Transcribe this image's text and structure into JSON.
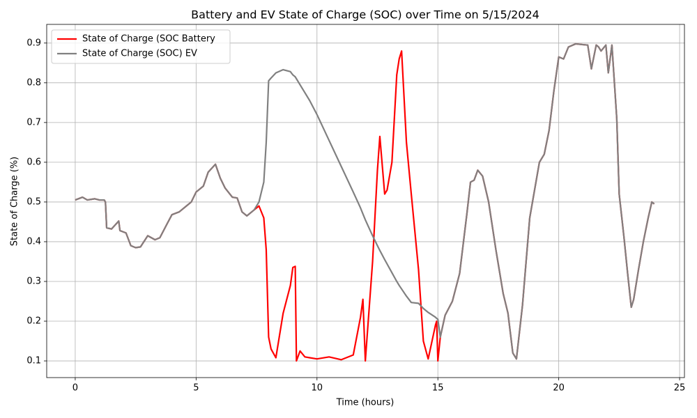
{
  "chart_data": {
    "type": "line",
    "title": "Battery and EV State of Charge (SOC) over Time on 5/15/2024",
    "x_label": "Time (hours)",
    "y_label": "State of Charge (%)",
    "x": [
      0,
      0.3,
      0.5,
      0.8,
      1.0,
      1.2,
      1.25,
      1.3,
      1.5,
      1.8,
      1.85,
      2.1,
      2.3,
      2.5,
      2.7,
      3.0,
      3.3,
      3.5,
      3.8,
      4.0,
      4.3,
      4.6,
      4.8,
      5.0,
      5.3,
      5.5,
      5.8,
      6.0,
      6.2,
      6.5,
      6.7,
      6.9,
      7.1,
      7.4,
      7.6,
      7.8,
      7.9,
      8.0,
      8.1,
      8.3,
      8.6,
      8.9,
      9.0,
      9.1,
      9.15,
      9.3,
      9.5,
      9.7,
      10.0,
      10.5,
      11.0,
      11.5,
      11.8,
      11.9,
      12.0,
      12.3,
      12.5,
      12.6,
      12.8,
      12.9,
      13.1,
      13.3,
      13.4,
      13.5,
      13.7,
      13.9,
      14.2,
      14.4,
      14.6,
      14.9,
      14.95,
      15.0,
      15.1,
      15.3,
      15.6,
      15.9,
      16.2,
      16.35,
      16.5,
      16.65,
      16.85,
      17.1,
      17.4,
      17.7,
      17.9,
      18.1,
      18.25,
      18.5,
      18.8,
      19.0,
      19.2,
      19.4,
      19.6,
      19.8,
      20.0,
      20.2,
      20.4,
      20.7,
      21.0,
      21.2,
      21.35,
      21.55,
      21.65,
      21.75,
      21.95,
      22.05,
      22.2,
      22.4,
      22.5,
      22.7,
      22.85,
      23.0,
      23.1,
      23.3,
      23.5,
      23.7,
      23.85,
      23.95
    ],
    "series": [
      {
        "name": "State of Charge (SOC Battery",
        "color": "#ff0000",
        "values": [
          0.505,
          0.512,
          0.505,
          0.508,
          0.505,
          0.505,
          0.5,
          0.435,
          0.432,
          0.452,
          0.428,
          0.422,
          0.39,
          0.385,
          0.387,
          0.415,
          0.405,
          0.41,
          0.445,
          0.468,
          0.475,
          0.49,
          0.5,
          0.525,
          0.54,
          0.575,
          0.595,
          0.56,
          0.535,
          0.512,
          0.51,
          0.475,
          0.465,
          0.48,
          0.49,
          0.46,
          0.38,
          0.16,
          0.13,
          0.108,
          0.22,
          0.29,
          0.335,
          0.338,
          0.1,
          0.125,
          0.11,
          0.108,
          0.105,
          0.11,
          0.103,
          0.115,
          0.21,
          0.255,
          0.1,
          0.35,
          0.58,
          0.665,
          0.52,
          0.53,
          0.6,
          0.82,
          0.86,
          0.88,
          0.65,
          0.52,
          0.33,
          0.15,
          0.105,
          0.19,
          0.2,
          0.1,
          0.16,
          0.215,
          0.25,
          0.32,
          0.47,
          0.55,
          0.555,
          0.58,
          0.565,
          0.5,
          0.38,
          0.27,
          0.22,
          0.12,
          0.105,
          0.24,
          0.46,
          0.53,
          0.6,
          0.62,
          0.68,
          0.78,
          0.865,
          0.86,
          0.89,
          0.898,
          0.896,
          0.895,
          0.835,
          0.895,
          0.89,
          0.88,
          0.895,
          0.825,
          0.895,
          0.71,
          0.52,
          0.41,
          0.32,
          0.235,
          0.255,
          0.33,
          0.4,
          0.46,
          0.5,
          0.495
        ]
      },
      {
        "name": "State of Charge (SOC) EV",
        "color": "#808080",
        "values": [
          0.505,
          0.512,
          0.505,
          0.508,
          0.505,
          0.505,
          0.5,
          0.435,
          0.432,
          0.452,
          0.428,
          0.422,
          0.39,
          0.385,
          0.387,
          0.415,
          0.405,
          0.41,
          0.445,
          0.468,
          0.475,
          0.49,
          0.5,
          0.525,
          0.54,
          0.575,
          0.595,
          0.56,
          0.535,
          0.512,
          0.51,
          0.475,
          0.465,
          0.48,
          0.5,
          0.55,
          0.65,
          0.805,
          0.812,
          0.825,
          0.833,
          0.828,
          0.82,
          0.815,
          0.81,
          0.795,
          0.775,
          0.755,
          0.72,
          0.655,
          0.59,
          0.525,
          0.485,
          0.47,
          0.455,
          0.415,
          0.39,
          0.378,
          0.355,
          0.344,
          0.322,
          0.3,
          0.29,
          0.281,
          0.263,
          0.247,
          0.245,
          0.232,
          0.222,
          0.21,
          0.207,
          0.205,
          0.16,
          0.215,
          0.25,
          0.32,
          0.47,
          0.55,
          0.555,
          0.58,
          0.565,
          0.5,
          0.38,
          0.27,
          0.22,
          0.12,
          0.105,
          0.24,
          0.46,
          0.53,
          0.6,
          0.62,
          0.68,
          0.78,
          0.865,
          0.86,
          0.89,
          0.898,
          0.896,
          0.895,
          0.835,
          0.895,
          0.89,
          0.88,
          0.895,
          0.825,
          0.895,
          0.71,
          0.52,
          0.41,
          0.32,
          0.235,
          0.255,
          0.33,
          0.4,
          0.46,
          0.5,
          0.495
        ]
      }
    ],
    "xlim": [
      -1.18,
      25.2
    ],
    "xticks": [
      0,
      5,
      10,
      15,
      20,
      25
    ],
    "ylim": [
      0.058,
      0.947
    ],
    "yticks": [
      0.1,
      0.2,
      0.3,
      0.4,
      0.5,
      0.6,
      0.7,
      0.8,
      0.9
    ],
    "grid": true,
    "legend": "upper left"
  }
}
